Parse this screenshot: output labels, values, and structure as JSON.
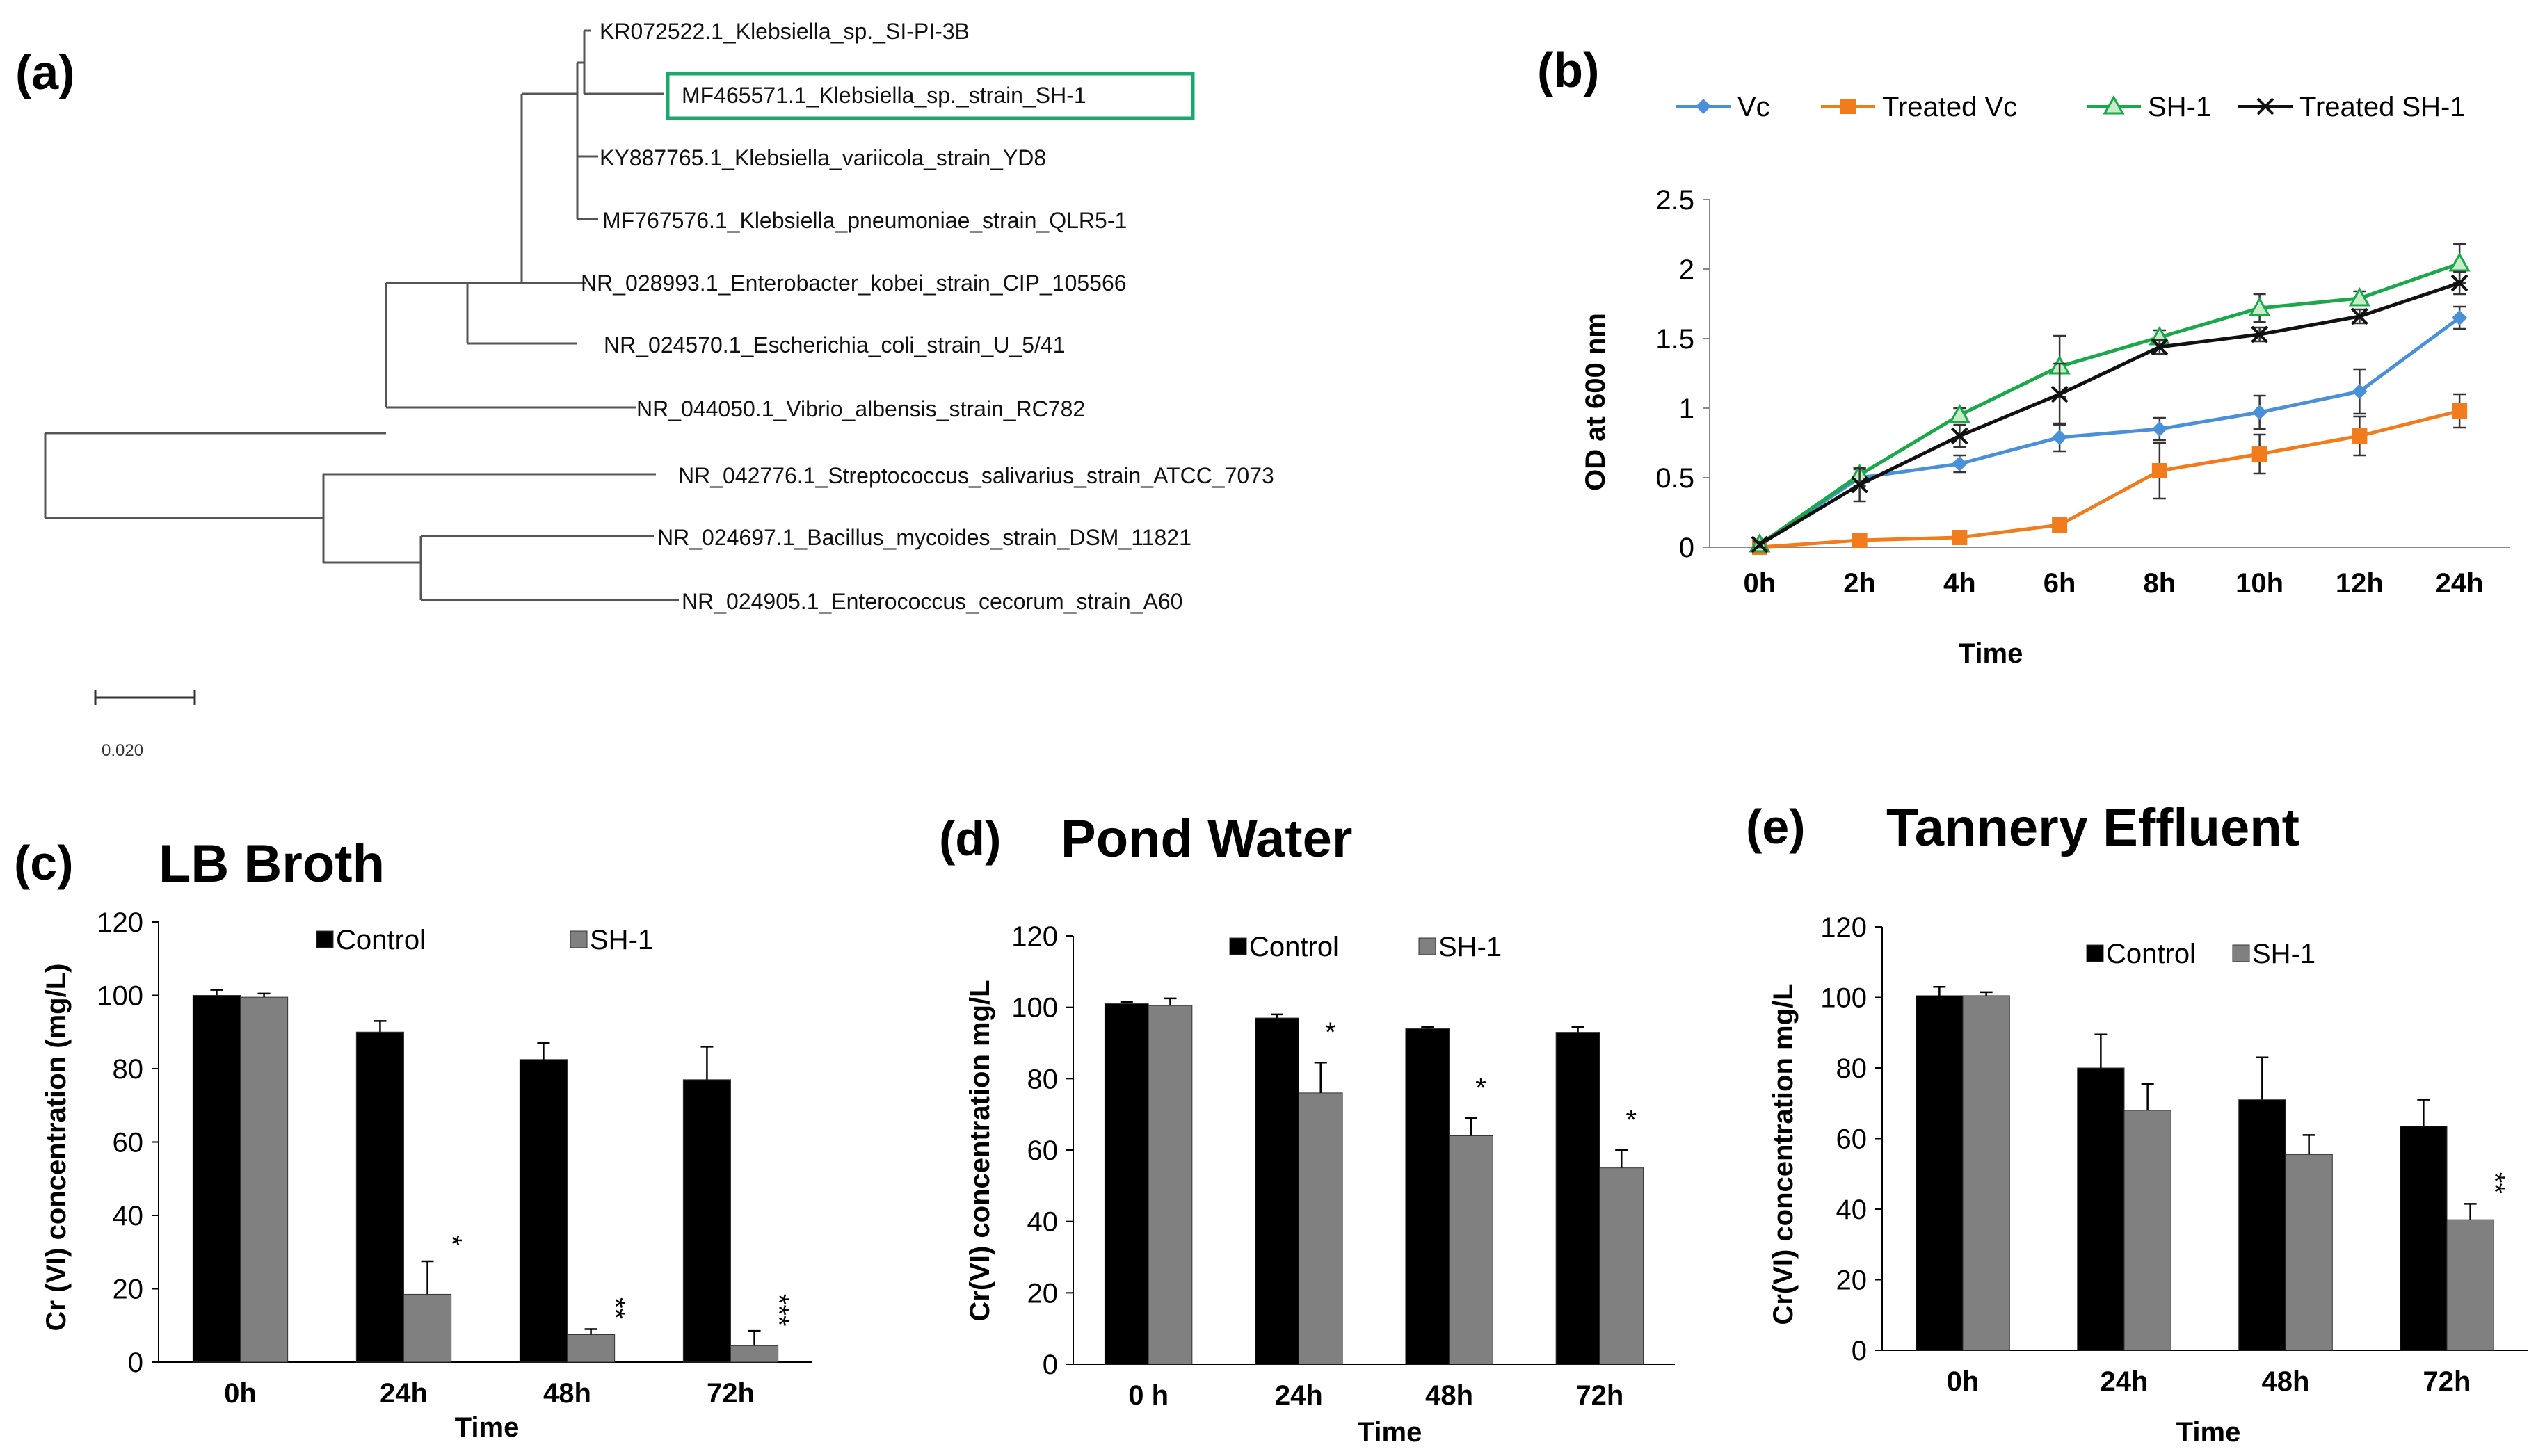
{
  "panel_labels": {
    "a": "(a)",
    "b": "(b)",
    "c": "(c)",
    "d": "(d)",
    "e": "(e)"
  },
  "tree": {
    "taxa": [
      "KR072522.1_Klebsiella_sp._SI-PI-3B",
      "MF465571.1_Klebsiella_sp._strain_SH-1",
      "KY887765.1_Klebsiella_variicola_strain_YD8",
      "MF767576.1_Klebsiella_pneumoniae_strain_QLR5-1",
      "NR_028993.1_Enterobacter_kobei_strain_CIP_105566",
      "NR_024570.1_Escherichia_coli_strain_U_5/41",
      "NR_044050.1_Vibrio_albensis_strain_RC782",
      "NR_042776.1_Streptococcus_salivarius_strain_ATCC_7073",
      "NR_024697.1_Bacillus_mycoides_strain_DSM_11821",
      "NR_024905.1_Enterococcus_cecorum_strain_A60"
    ],
    "highlight_color": "#1aa86b",
    "scale_label": "0.020"
  },
  "chart_data": [
    {
      "id": "b",
      "type": "line",
      "title": "",
      "xlabel": "Time",
      "ylabel": "OD at 600 nm",
      "categories": [
        "0h",
        "2h",
        "4h",
        "6h",
        "8h",
        "10h",
        "12h",
        "24h"
      ],
      "ylim": [
        0,
        2.5
      ],
      "yticks": [
        "0",
        "0.5",
        "1",
        "1.5",
        "2",
        "2.5"
      ],
      "series": [
        {
          "name": "Vc",
          "color": "#4a90d9",
          "marker": "diamond",
          "values": [
            0.02,
            0.5,
            0.6,
            0.79,
            0.85,
            0.97,
            1.12,
            1.65
          ],
          "errors": [
            0.02,
            0.06,
            0.06,
            0.1,
            0.08,
            0.12,
            0.16,
            0.08
          ]
        },
        {
          "name": "Treated Vc",
          "color": "#f07c1e",
          "marker": "square",
          "values": [
            0.0,
            0.05,
            0.07,
            0.16,
            0.55,
            0.67,
            0.8,
            0.98
          ],
          "errors": [
            0.0,
            0.02,
            0.02,
            0.04,
            0.2,
            0.14,
            0.14,
            0.12
          ]
        },
        {
          "name": "SH-1",
          "color": "#1aa84a",
          "marker": "triangle",
          "values": [
            0.02,
            0.52,
            0.95,
            1.3,
            1.51,
            1.72,
            1.79,
            2.04
          ],
          "errors": [
            0.02,
            0.05,
            0.05,
            0.22,
            0.05,
            0.1,
            0.05,
            0.14
          ]
        },
        {
          "name": "Treated SH-1",
          "color": "#111111",
          "marker": "x",
          "values": [
            0.02,
            0.45,
            0.8,
            1.1,
            1.44,
            1.53,
            1.66,
            1.9
          ],
          "errors": [
            0.02,
            0.12,
            0.08,
            0.22,
            0.05,
            0.05,
            0.05,
            0.08
          ]
        }
      ]
    },
    {
      "id": "c",
      "type": "bar",
      "title": "LB Broth",
      "xlabel": "Time",
      "ylabel": "Cr (VI) concentration (mg/L)",
      "categories": [
        "0h",
        "24h",
        "48h",
        "72h"
      ],
      "ylim": [
        0,
        120
      ],
      "yticks": [
        "0",
        "20",
        "40",
        "60",
        "80",
        "100",
        "120"
      ],
      "series": [
        {
          "name": "Control",
          "color": "#000000",
          "values": [
            100,
            90,
            82.5,
            77
          ],
          "errors": [
            1.5,
            3,
            4.5,
            9
          ]
        },
        {
          "name": "SH-1",
          "color": "#808080",
          "values": [
            99.5,
            18.5,
            7.5,
            4.5
          ],
          "errors": [
            1,
            9,
            1.5,
            4
          ]
        }
      ],
      "significance": [
        "",
        "*",
        "**",
        "***"
      ]
    },
    {
      "id": "d",
      "type": "bar",
      "title": "Pond Water",
      "xlabel": "Time",
      "ylabel": "Cr(VI) concentration mg/L",
      "categories": [
        "0 h",
        "24h",
        "48h",
        "72h"
      ],
      "ylim": [
        0,
        120
      ],
      "yticks": [
        "0",
        "20",
        "40",
        "60",
        "80",
        "100",
        "120"
      ],
      "series": [
        {
          "name": "Control",
          "color": "#000000",
          "values": [
            101,
            97,
            94,
            93
          ],
          "errors": [
            0.5,
            1,
            0.5,
            1.5
          ]
        },
        {
          "name": "SH-1",
          "color": "#808080",
          "values": [
            100.5,
            76,
            64,
            55
          ],
          "errors": [
            2,
            8.5,
            5,
            5
          ]
        }
      ],
      "significance": [
        "",
        "*",
        "*",
        "*"
      ]
    },
    {
      "id": "e",
      "type": "bar",
      "title": "Tannery Effluent",
      "xlabel": "Time",
      "ylabel": "Cr(VI) concentration mg/L",
      "categories": [
        "0h",
        "24h",
        "48h",
        "72h"
      ],
      "ylim": [
        0,
        120
      ],
      "yticks": [
        "0",
        "20",
        "40",
        "60",
        "80",
        "100",
        "120"
      ],
      "series": [
        {
          "name": "Control",
          "color": "#000000",
          "values": [
            100.5,
            80,
            71,
            63.5
          ],
          "errors": [
            2.5,
            9.5,
            12,
            7.5
          ]
        },
        {
          "name": "SH-1",
          "color": "#808080",
          "values": [
            100.5,
            68,
            55.5,
            37
          ],
          "errors": [
            1,
            7.5,
            5.5,
            4.5
          ]
        }
      ],
      "significance": [
        "",
        "",
        "",
        "**"
      ]
    }
  ]
}
